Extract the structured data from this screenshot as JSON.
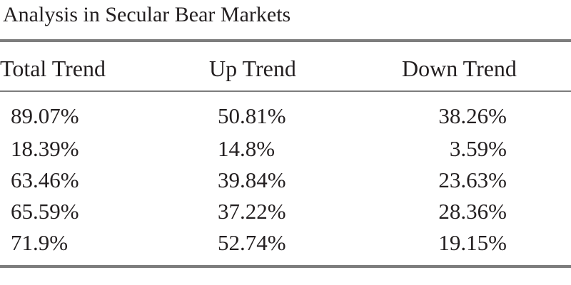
{
  "title": "Analysis in Secular Bear Markets",
  "table": {
    "header": [
      "Total Trend",
      "Up Trend",
      "Down Trend"
    ],
    "rows": [
      [
        "89.07%",
        "50.81%",
        "38.26%"
      ],
      [
        "18.39%",
        "14.8%",
        "3.59%"
      ],
      [
        "63.46%",
        "39.84%",
        "23.63%"
      ],
      [
        "65.59%",
        "37.22%",
        "28.36%"
      ],
      [
        "71.9%",
        "52.74%",
        "19.15%"
      ]
    ]
  }
}
